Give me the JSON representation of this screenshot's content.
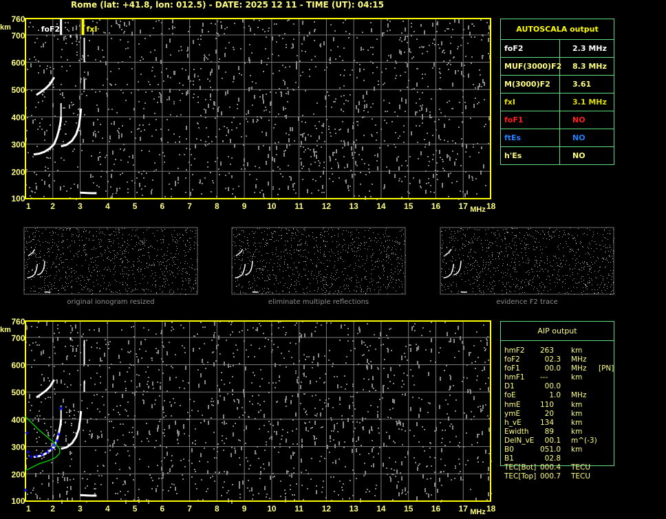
{
  "header": {
    "title": "Rome (lat: +41.8, lon: 012.5) - DATE: 2025 12 11 - TIME (UT): 04:15"
  },
  "colors": {
    "background": "#000000",
    "grid": "#7a7a7a",
    "axis": "#ffff00",
    "label": "#ffff80",
    "noise": "#8a8a8a",
    "trace": "#ffffff",
    "profile": "#00e000",
    "aip_points": "#0000ff",
    "table_border": "#60e080"
  },
  "chart_data": [
    {
      "type": "scatter",
      "title": "",
      "xlabel": "MHz",
      "ylabel": "km",
      "xlim": [
        1,
        18
      ],
      "ylim": [
        100,
        760
      ],
      "xticks": [
        "1",
        "2",
        "3",
        "4",
        "5",
        "6",
        "7",
        "8",
        "9",
        "10",
        "11",
        "12",
        "13",
        "14",
        "15",
        "16",
        "17",
        "18"
      ],
      "yticks": [
        "100",
        "200",
        "300",
        "400",
        "500",
        "600",
        "700",
        "760"
      ],
      "grid": true,
      "annotations": [
        {
          "text": "foF2",
          "x": 2.3,
          "color": "#ffffff"
        },
        {
          "text": "fxI",
          "x": 3.1,
          "color": "#ffff00"
        }
      ],
      "traces": {
        "o_trace": [
          [
            1.3,
            262
          ],
          [
            1.5,
            265
          ],
          [
            1.7,
            272
          ],
          [
            1.9,
            285
          ],
          [
            2.05,
            300
          ],
          [
            2.15,
            325
          ],
          [
            2.22,
            350
          ],
          [
            2.28,
            380
          ],
          [
            2.3,
            400
          ]
        ],
        "x_trace": [
          [
            2.3,
            292
          ],
          [
            2.5,
            297
          ],
          [
            2.7,
            312
          ],
          [
            2.85,
            335
          ],
          [
            2.95,
            365
          ],
          [
            3.0,
            400
          ],
          [
            3.03,
            430
          ]
        ],
        "second_hop": [
          [
            1.4,
            480
          ],
          [
            1.55,
            490
          ],
          [
            1.75,
            505
          ],
          [
            1.9,
            520
          ],
          [
            2.05,
            545
          ]
        ],
        "low_echo": [
          [
            3.0,
            122
          ],
          [
            3.2,
            121
          ],
          [
            3.4,
            120
          ],
          [
            3.6,
            120
          ]
        ]
      }
    },
    {
      "type": "scatter",
      "title": "",
      "xlabel": "MHz",
      "ylabel": "km",
      "xlim": [
        1,
        18
      ],
      "ylim": [
        100,
        760
      ],
      "xticks": [
        "1",
        "2",
        "3",
        "4",
        "5",
        "6",
        "7",
        "8",
        "9",
        "10",
        "11",
        "12",
        "13",
        "14",
        "15",
        "16",
        "17",
        "18"
      ],
      "yticks": [
        "100",
        "200",
        "300",
        "400",
        "500",
        "600",
        "700",
        "760"
      ],
      "grid": true,
      "profile": [
        [
          1.0,
          410
        ],
        [
          1.2,
          390
        ],
        [
          1.5,
          360
        ],
        [
          1.8,
          335
        ],
        [
          2.0,
          318
        ],
        [
          2.15,
          305
        ],
        [
          2.25,
          290
        ],
        [
          2.25,
          275
        ],
        [
          2.1,
          260
        ],
        [
          1.9,
          250
        ],
        [
          1.5,
          237
        ],
        [
          1.2,
          222
        ],
        [
          1.0,
          212
        ]
      ],
      "aip_points": [
        [
          1.2,
          263
        ],
        [
          1.4,
          265
        ],
        [
          1.6,
          270
        ],
        [
          1.8,
          280
        ],
        [
          1.95,
          292
        ],
        [
          2.05,
          305
        ],
        [
          2.15,
          320
        ],
        [
          2.22,
          345
        ],
        [
          2.3,
          440
        ],
        [
          1.05,
          350
        ],
        [
          1.1,
          280
        ],
        [
          1.0,
          140
        ]
      ]
    }
  ],
  "autoscala": {
    "title": "AUTOSCALA output",
    "rows": [
      {
        "label": "foF2",
        "value": "2.3 MHz",
        "color": "#ffffff"
      },
      {
        "label": "MUF(3000)F2",
        "value": "8.3 MHz",
        "color": "#ffff80"
      },
      {
        "label": "M(3000)F2",
        "value": "3.61",
        "color": "#ffff80"
      },
      {
        "label": "fxI",
        "value": "3.1 MHz",
        "color": "#e0e000"
      },
      {
        "label": "foF1",
        "value": "NO",
        "color": "#ff2020"
      },
      {
        "label": "ftEs",
        "value": "NO",
        "color": "#2080ff"
      },
      {
        "label": "h'Es",
        "value": "NO",
        "color": "#ffff80"
      }
    ]
  },
  "thumbnails": [
    {
      "caption": "original ionogram resized"
    },
    {
      "caption": "eliminate multiple reflections"
    },
    {
      "caption": "evidence F2 trace"
    }
  ],
  "aip": {
    "title": "AIP output",
    "rows": [
      {
        "k": "hmF2",
        "v": "263",
        "u": "km",
        "x": ""
      },
      {
        "k": "foF2",
        "v": "  02.3",
        "u": "MHz",
        "x": ""
      },
      {
        "k": "foF1",
        "v": "  00.0",
        "u": "MHz",
        "x": "[PN]"
      },
      {
        "k": "hmF1",
        "v": "---",
        "u": "km",
        "x": ""
      },
      {
        "k": "D1",
        "v": "  00.0",
        "u": "",
        "x": ""
      },
      {
        "k": "foE",
        "v": "    1.0",
        "u": "MHz",
        "x": ""
      },
      {
        "k": "hmE",
        "v": "110",
        "u": "km",
        "x": ""
      },
      {
        "k": "ymE",
        "v": "  20",
        "u": "km",
        "x": ""
      },
      {
        "k": "h_vE",
        "v": "134",
        "u": "km",
        "x": ""
      },
      {
        "k": "Ewidth",
        "v": "  89",
        "u": "km",
        "x": ""
      },
      {
        "k": "DelN_vE",
        "v": "  00.1",
        "u": "m^(-3)",
        "x": ""
      },
      {
        "k": "B0",
        "v": "051.0",
        "u": "km",
        "x": ""
      },
      {
        "k": "B1",
        "v": "  02.8",
        "u": "",
        "x": ""
      },
      {
        "k": "TEC[Bot]",
        "v": "000.4",
        "u": "TECU",
        "x": ""
      },
      {
        "k": "TEC[Top]",
        "v": "000.7",
        "u": "TECU",
        "x": ""
      }
    ]
  }
}
